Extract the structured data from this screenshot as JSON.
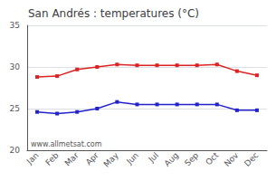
{
  "chart_data": {
    "type": "line",
    "title": "San Andrés : temperatures (°C)",
    "categories": [
      "Jan",
      "Feb",
      "Mar",
      "Apr",
      "May",
      "Jun",
      "Jul",
      "Aug",
      "Sep",
      "Oct",
      "Nov",
      "Dec"
    ],
    "series": [
      {
        "color": "#dd2222",
        "values": [
          28.8,
          28.9,
          29.7,
          30.0,
          30.3,
          30.2,
          30.2,
          30.2,
          30.2,
          30.3,
          29.5,
          29.0
        ]
      },
      {
        "color": "#2222cc",
        "values": [
          24.6,
          24.4,
          24.6,
          25.0,
          25.8,
          25.5,
          25.5,
          25.5,
          25.5,
          25.5,
          24.8,
          24.8
        ]
      }
    ],
    "marker": "square",
    "ylim": [
      20,
      35
    ],
    "yticks": [
      20,
      25,
      30,
      35
    ],
    "grid": true,
    "annotations": [
      "www.allmetsat.com"
    ]
  }
}
